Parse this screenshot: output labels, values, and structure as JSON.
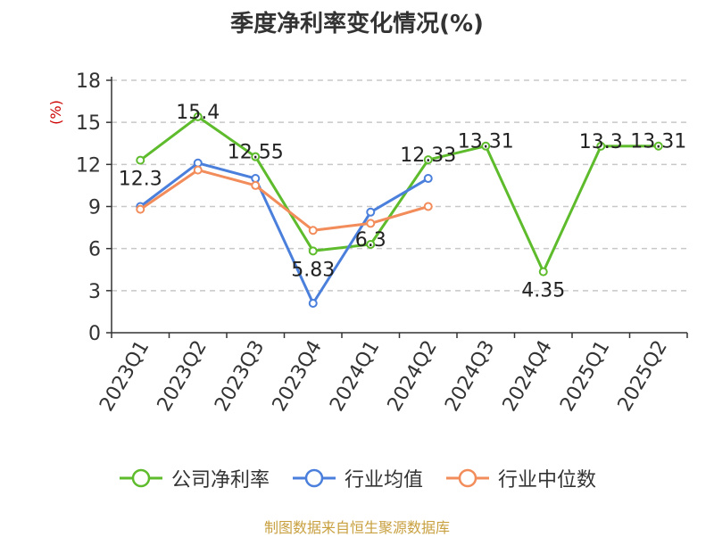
{
  "chart_data": {
    "type": "line",
    "title": "季度净利率变化情况(%)",
    "ylabel": "(%)",
    "xlabel": "",
    "categories": [
      "2023Q1",
      "2023Q2",
      "2023Q3",
      "2023Q4",
      "2024Q1",
      "2024Q2",
      "2024Q3",
      "2024Q4",
      "2025Q1",
      "2025Q2"
    ],
    "ylim": [
      0,
      18
    ],
    "yticks": [
      0,
      3,
      6,
      9,
      12,
      15,
      18
    ],
    "grid": true,
    "legend_position": "bottom",
    "series": [
      {
        "name": "公司净利率",
        "color": "#5dbb2c",
        "values": [
          12.3,
          15.4,
          12.55,
          5.83,
          6.3,
          12.33,
          13.31,
          4.35,
          13.3,
          13.31
        ],
        "labels": [
          "12.3",
          "15.4",
          "12.55",
          "5.83",
          "6.3",
          "12.33",
          "13.31",
          "4.35",
          "13.3",
          "13.31"
        ]
      },
      {
        "name": "行业均值",
        "color": "#4a7fdc",
        "values": [
          9.0,
          12.1,
          11.0,
          2.1,
          8.6,
          11.0,
          null,
          null,
          null,
          null
        ]
      },
      {
        "name": "行业中位数",
        "color": "#f28c5a",
        "values": [
          8.8,
          11.6,
          10.5,
          7.3,
          7.8,
          9.0,
          null,
          null,
          null,
          null
        ]
      }
    ]
  },
  "source": "制图数据来自恒生聚源数据库"
}
